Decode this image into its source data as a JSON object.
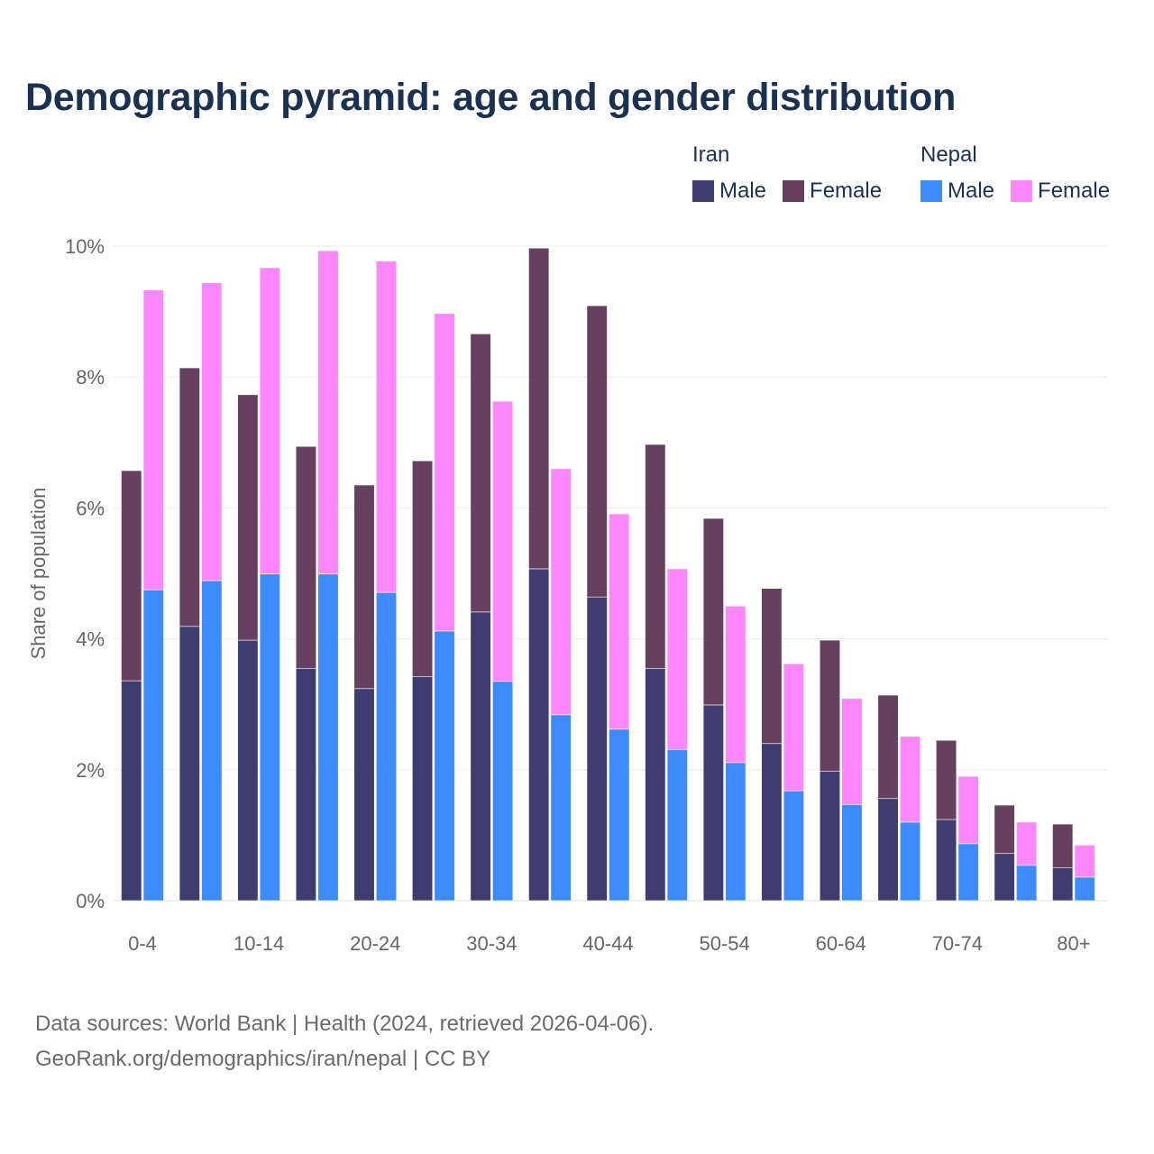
{
  "chart_data": {
    "type": "bar",
    "stacked": true,
    "title": "Demographic pyramid: age and gender distribution",
    "xlabel": "",
    "ylabel": "Share of population",
    "ylim": [
      0,
      10
    ],
    "yticks": [
      "0%",
      "2%",
      "4%",
      "6%",
      "8%",
      "10%"
    ],
    "ytick_values": [
      0,
      2,
      4,
      6,
      8,
      10
    ],
    "grid": true,
    "legend_position": "top-right",
    "categories": [
      "0-4",
      "5-9",
      "10-14",
      "15-19",
      "20-24",
      "25-29",
      "30-34",
      "35-39",
      "40-44",
      "45-49",
      "50-54",
      "55-59",
      "60-64",
      "65-69",
      "70-74",
      "75-79",
      "80+"
    ],
    "xtick_labels": [
      "0-4",
      "10-14",
      "20-24",
      "30-34",
      "40-44",
      "50-54",
      "60-64",
      "70-74",
      "80+"
    ],
    "groups": [
      {
        "name": "Iran",
        "series": [
          {
            "name": "Male",
            "color": "#3f3d70",
            "values": [
              3.36,
              4.19,
              3.98,
              3.55,
              3.24,
              3.42,
              4.41,
              5.07,
              4.64,
              3.55,
              2.99,
              2.4,
              1.98,
              1.56,
              1.24,
              0.72,
              0.5
            ]
          },
          {
            "name": "Female",
            "color": "#66405f",
            "values": [
              3.21,
              3.95,
              3.75,
              3.39,
              3.11,
              3.3,
              4.25,
              4.9,
              4.45,
              3.42,
              2.85,
              2.37,
              2.0,
              1.58,
              1.21,
              0.74,
              0.67
            ]
          }
        ]
      },
      {
        "name": "Nepal",
        "series": [
          {
            "name": "Male",
            "color": "#3d8bff",
            "values": [
              4.75,
              4.89,
              4.99,
              4.99,
              4.71,
              4.12,
              3.35,
              2.84,
              2.62,
              2.31,
              2.11,
              1.68,
              1.47,
              1.2,
              0.87,
              0.54,
              0.36
            ]
          },
          {
            "name": "Female",
            "color": "#ff88ff",
            "values": [
              4.58,
              4.55,
              4.68,
              4.94,
              5.06,
              4.85,
              4.28,
              3.76,
              3.29,
              2.76,
              2.39,
              1.94,
              1.62,
              1.31,
              1.03,
              0.66,
              0.49
            ]
          }
        ]
      }
    ]
  },
  "source": {
    "line1": "Data sources: World Bank | Health (2024, retrieved 2026-04-06).",
    "line2": "GeoRank.org/demographics/iran/nepal | CC BY"
  }
}
